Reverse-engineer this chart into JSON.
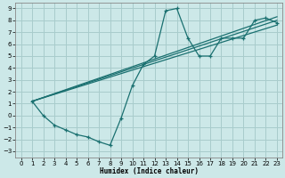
{
  "xlabel": "Humidex (Indice chaleur)",
  "bg_color": "#cce8e8",
  "grid_color": "#a8cccc",
  "line_color": "#1a7070",
  "xlim": [
    -0.5,
    23.5
  ],
  "ylim": [
    -3.5,
    9.5
  ],
  "xticks": [
    0,
    1,
    2,
    3,
    4,
    5,
    6,
    7,
    8,
    9,
    10,
    11,
    12,
    13,
    14,
    15,
    16,
    17,
    18,
    19,
    20,
    21,
    22,
    23
  ],
  "yticks": [
    -3,
    -2,
    -1,
    0,
    1,
    2,
    3,
    4,
    5,
    6,
    7,
    8,
    9
  ],
  "main_x": [
    1,
    2,
    3,
    4,
    5,
    6,
    7,
    8,
    9,
    10,
    11,
    12,
    13,
    14,
    15,
    16,
    17,
    18,
    19,
    20,
    21,
    22,
    23
  ],
  "main_y": [
    1.2,
    0.0,
    -0.8,
    -1.2,
    -1.6,
    -1.8,
    -2.2,
    -2.5,
    -0.2,
    2.5,
    4.3,
    5.0,
    8.8,
    9.0,
    6.5,
    5.0,
    5.0,
    6.5,
    6.5,
    6.5,
    8.0,
    8.2,
    7.8
  ],
  "trend1_x": [
    1,
    23
  ],
  "trend1_y": [
    1.2,
    7.6
  ],
  "trend2_x": [
    1,
    23
  ],
  "trend2_y": [
    1.2,
    8.0
  ],
  "trend3_x": [
    1,
    23
  ],
  "trend3_y": [
    1.2,
    8.3
  ]
}
